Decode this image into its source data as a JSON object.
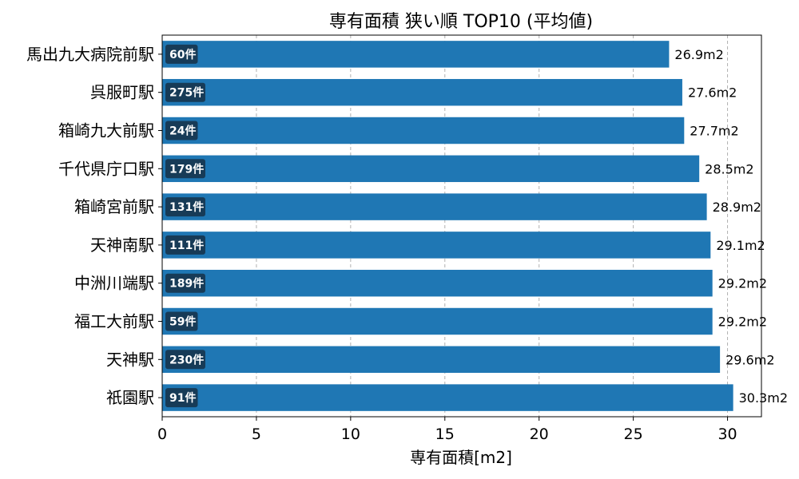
{
  "chart_data": {
    "type": "bar",
    "orientation": "horizontal",
    "title": "専有面積 狭い順 TOP10 (平均値)",
    "xlabel": "専有面積[m2]",
    "ylabel": "",
    "xlim": [
      0,
      31.8
    ],
    "xticks": [
      0,
      5,
      10,
      15,
      20,
      25,
      30
    ],
    "grid": "x-dashed",
    "categories": [
      "馬出九大病院前駅",
      "呉服町駅",
      "箱崎九大前駅",
      "千代県庁口駅",
      "箱崎宮前駅",
      "天神南駅",
      "中洲川端駅",
      "福工大前駅",
      "天神駅",
      "祇園駅"
    ],
    "values": [
      26.9,
      27.6,
      27.7,
      28.5,
      28.9,
      29.1,
      29.2,
      29.2,
      29.6,
      30.3
    ],
    "value_labels": [
      "26.9m2",
      "27.6m2",
      "27.7m2",
      "28.5m2",
      "28.9m2",
      "29.1m2",
      "29.2m2",
      "29.2m2",
      "29.6m2",
      "30.3m2"
    ],
    "count_labels": [
      "60件",
      "275件",
      "24件",
      "179件",
      "131件",
      "111件",
      "189件",
      "59件",
      "230件",
      "91件"
    ],
    "bar_color": "#1f77b4",
    "badge_color": "#173b57"
  }
}
